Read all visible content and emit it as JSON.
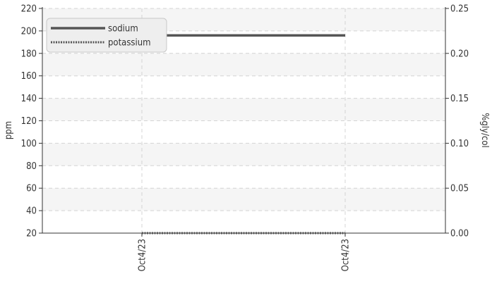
{
  "chart_data": {
    "type": "line",
    "x": [
      "Oct4/23",
      "Oct4/23"
    ],
    "series": [
      {
        "name": "sodium",
        "axis": "left",
        "values": [
          196,
          196
        ],
        "color": "#555555",
        "style": "solid"
      },
      {
        "name": "potassium",
        "axis": "right",
        "values": [
          0,
          0
        ],
        "color": "#555555",
        "style": "dotted"
      }
    ],
    "ylabel": "ppm",
    "y2label": "%gly/col",
    "ylim": [
      20,
      220
    ],
    "y2lim": [
      0,
      0.25
    ],
    "yticks": [
      "20",
      "40",
      "60",
      "80",
      "100",
      "120",
      "140",
      "160",
      "180",
      "200",
      "220"
    ],
    "y2ticks": [
      "0.00",
      "0.05",
      "0.10",
      "0.15",
      "0.20",
      "0.25"
    ],
    "grid": true,
    "legend_position": "top-left"
  }
}
